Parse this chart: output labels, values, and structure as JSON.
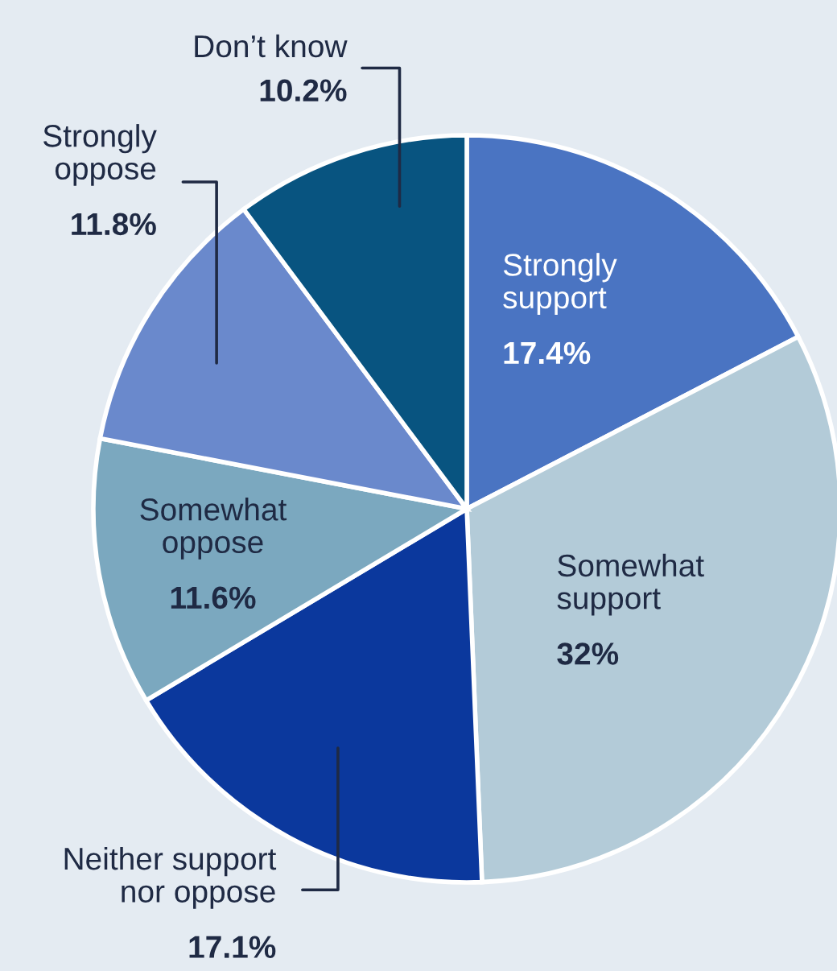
{
  "chart_data": {
    "type": "pie",
    "categories": [
      "Strongly\nsupport",
      "Somewhat\nsupport",
      "Neither support\nnor oppose",
      "Somewhat\noppose",
      "Strongly\noppose",
      "Don’t know"
    ],
    "values": [
      17.4,
      32,
      17.1,
      11.6,
      11.8,
      10.2
    ],
    "colors": [
      "#4a74c2",
      "#b3cbd8",
      "#0b389d",
      "#7ba8bf",
      "#6a89cc",
      "#085480"
    ],
    "value_labels": [
      "17.4%",
      "32%",
      "17.1%",
      "11.6%",
      "11.8%",
      "10.2%"
    ]
  }
}
